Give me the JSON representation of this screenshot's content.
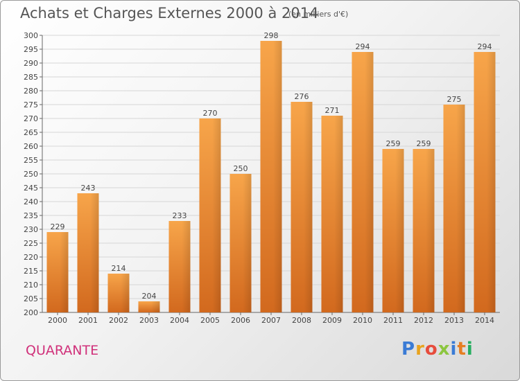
{
  "title": "Achats et Charges Externes 2000 à 2014",
  "subtitle": "(en milliers d'€)",
  "town": "QUARANTE",
  "logo": {
    "text": "Proxiti",
    "parts": [
      "P",
      "r",
      "o",
      "x",
      "i",
      "t",
      "i"
    ]
  },
  "colors": {
    "bar_top": "#f7a54a",
    "bar_bottom": "#d2691e",
    "grid": "#d6d6d6",
    "axis": "#666666"
  },
  "chart_data": {
    "type": "bar",
    "title": "Achats et Charges Externes 2000 à 2014",
    "subtitle": "(en milliers d'€)",
    "xlabel": "",
    "ylabel": "",
    "categories": [
      "2000",
      "2001",
      "2002",
      "2003",
      "2004",
      "2005",
      "2006",
      "2007",
      "2008",
      "2009",
      "2010",
      "2011",
      "2012",
      "2013",
      "2014"
    ],
    "values": [
      229,
      243,
      214,
      204,
      233,
      270,
      250,
      298,
      276,
      271,
      294,
      259,
      259,
      275,
      294
    ],
    "ylim": [
      200,
      300
    ],
    "ytick_step": 5,
    "grid": true,
    "data_labels": true
  }
}
